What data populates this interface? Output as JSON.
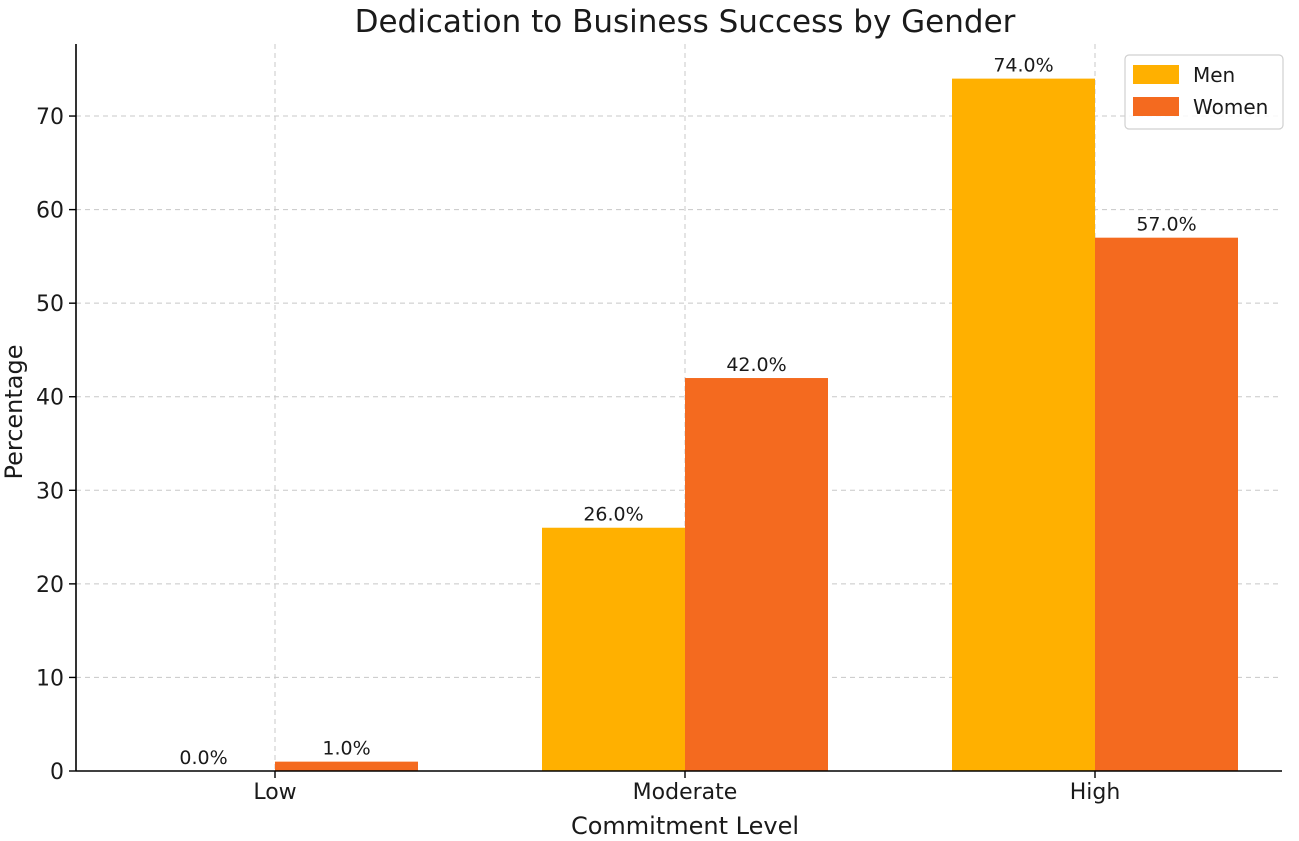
{
  "chart_data": {
    "type": "bar",
    "title": "Dedication to Business Success by Gender",
    "xlabel": "Commitment Level",
    "ylabel": "Percentage",
    "categories": [
      "Low",
      "Moderate",
      "High"
    ],
    "series": [
      {
        "name": "Men",
        "color": "#FFB000",
        "values": [
          0,
          26,
          74
        ],
        "labels": [
          "0.0%",
          "26.0%",
          "74.0%"
        ]
      },
      {
        "name": "Women",
        "color": "#F46A1F",
        "values": [
          1,
          42,
          57
        ],
        "labels": [
          "1.0%",
          "42.0%",
          "57.0%"
        ]
      }
    ],
    "yticks": [
      0,
      10,
      20,
      30,
      40,
      50,
      60,
      70
    ],
    "ylim": [
      0,
      77.7
    ],
    "grid": true,
    "legend_position": "top-right"
  }
}
